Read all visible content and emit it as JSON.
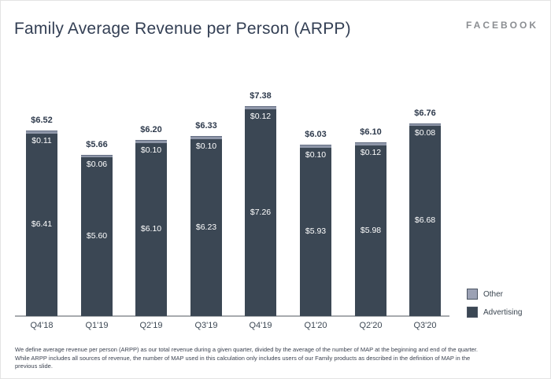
{
  "page": {
    "title": "Family Average Revenue per Person (ARPP)",
    "logo": "FACEBOOK",
    "footnote": "We define average revenue per person (ARPP) as our total revenue during a given quarter, divided by the average of the number of MAP at the beginning and end of the quarter. While ARPP includes all sources of revenue, the number of MAP used in this calculation only includes users of our Family products as described in the definition of MAP in the previous slide."
  },
  "chart_data": {
    "type": "bar",
    "stacked": true,
    "title": "Family Average Revenue per Person (ARPP)",
    "categories": [
      "Q4'18",
      "Q1'19",
      "Q2'19",
      "Q3'19",
      "Q4'19",
      "Q1'20",
      "Q2'20",
      "Q3'20"
    ],
    "series": [
      {
        "name": "Advertising",
        "color": "#3b4754",
        "values": [
          6.41,
          5.6,
          6.1,
          6.23,
          7.26,
          5.93,
          5.98,
          6.68
        ],
        "labels": [
          "$6.41",
          "$5.60",
          "$6.10",
          "$6.23",
          "$7.26",
          "$5.93",
          "$5.98",
          "$6.68"
        ]
      },
      {
        "name": "Other",
        "color": "#8f97a9",
        "values": [
          0.11,
          0.06,
          0.1,
          0.1,
          0.12,
          0.1,
          0.12,
          0.08
        ],
        "labels": [
          "$0.11",
          "$0.06",
          "$0.10",
          "$0.10",
          "$0.12",
          "$0.10",
          "$0.12",
          "$0.08"
        ]
      }
    ],
    "totals": [
      6.52,
      5.66,
      6.2,
      6.33,
      7.38,
      6.03,
      6.1,
      6.76
    ],
    "total_labels": [
      "$6.52",
      "$5.66",
      "$6.20",
      "$6.33",
      "$7.38",
      "$6.03",
      "$6.10",
      "$6.76"
    ],
    "legend": [
      {
        "label": "Other",
        "color": "#9ba1b4"
      },
      {
        "label": "Advertising",
        "color": "#3b4754"
      }
    ],
    "legend_position": "bottom-right",
    "xlabel": "",
    "ylabel": "",
    "ylim": [
      0,
      7.38
    ],
    "grid": false
  }
}
